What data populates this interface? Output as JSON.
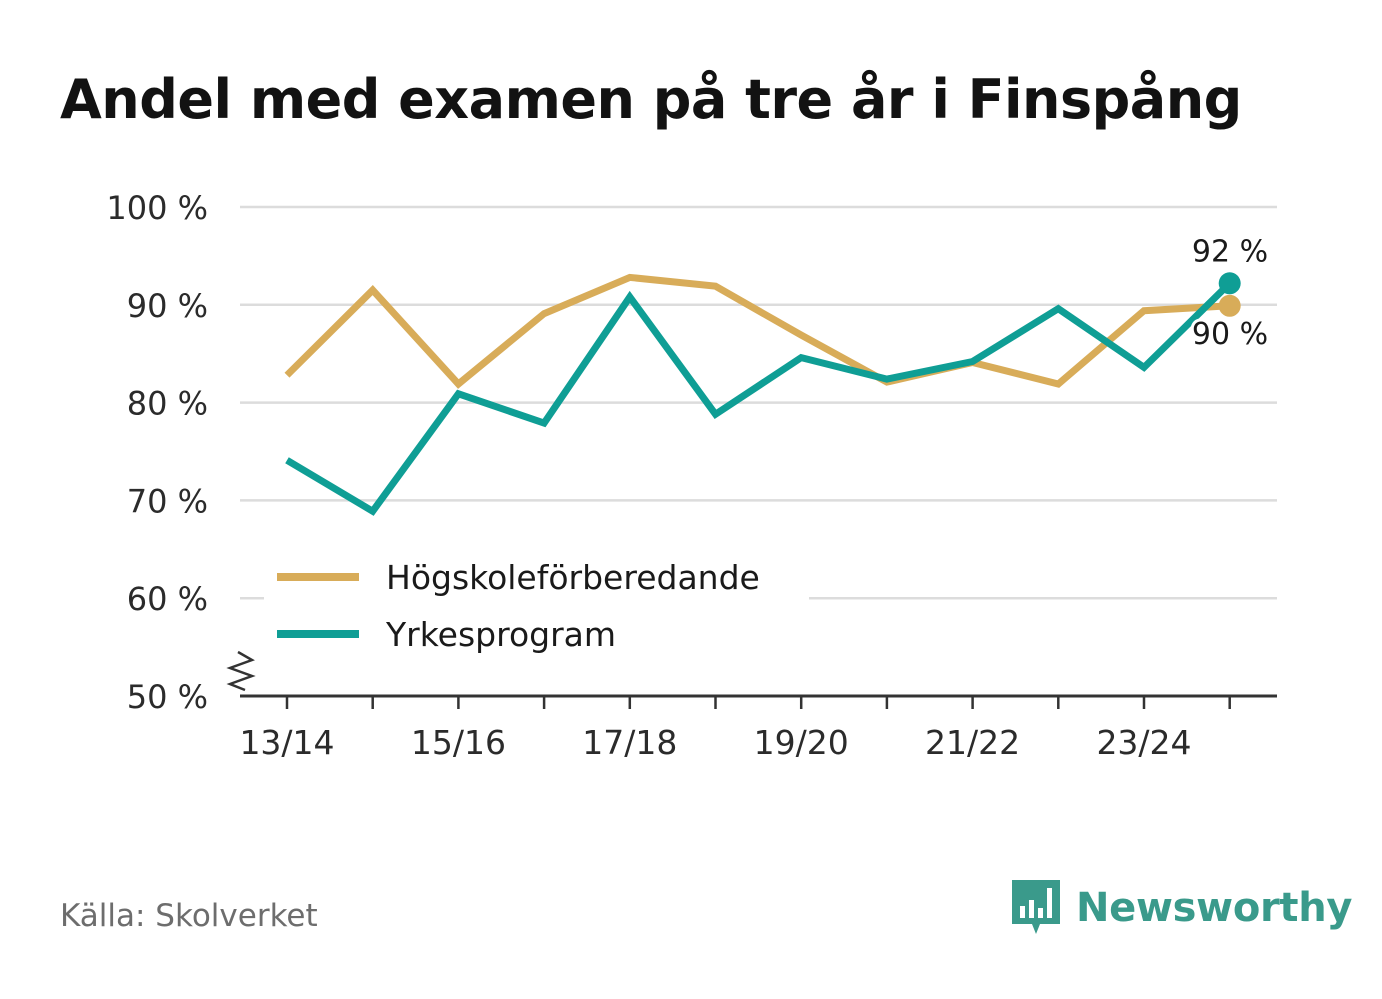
{
  "title": "Andel med examen på tre år i Finspång",
  "source": "Källa: Skolverket",
  "brand": {
    "name": "Newsworthy",
    "icon": "newsworthy-logo-icon"
  },
  "colors": {
    "series1": "#d8ac59",
    "series2": "#0f9e95",
    "grid": "#dcdcdc",
    "axis": "#333333"
  },
  "chart_data": {
    "type": "line",
    "title": "Andel med examen på tre år i Finspång",
    "xlabel": "",
    "ylabel": "",
    "x": [
      "13/14",
      "14/15",
      "15/16",
      "16/17",
      "17/18",
      "18/19",
      "19/20",
      "20/21",
      "21/22",
      "22/23",
      "23/24",
      "24/25"
    ],
    "x_ticks": [
      "13/14",
      "15/16",
      "17/18",
      "19/20",
      "21/22",
      "23/24"
    ],
    "y_ticks": [
      "50 %",
      "60 %",
      "70 %",
      "80 %",
      "90 %",
      "100 %"
    ],
    "y_tick_values": [
      50,
      60,
      70,
      80,
      90,
      100
    ],
    "ylim": [
      50,
      100
    ],
    "y_axis_break": true,
    "grid": true,
    "legend_position": "bottom-left",
    "series": [
      {
        "name": "Högskoleförberedande",
        "color": "#d8ac59",
        "values": [
          82.8,
          91.5,
          81.9,
          89.1,
          92.8,
          91.9,
          86.9,
          82.1,
          84.1,
          81.9,
          89.4,
          89.9
        ],
        "end_label": "90 %"
      },
      {
        "name": "Yrkesprogram",
        "color": "#0f9e95",
        "values": [
          74.1,
          68.9,
          80.9,
          77.9,
          90.8,
          78.8,
          84.6,
          82.4,
          84.2,
          89.6,
          83.6,
          92.2
        ],
        "end_label": "92 %"
      }
    ]
  }
}
